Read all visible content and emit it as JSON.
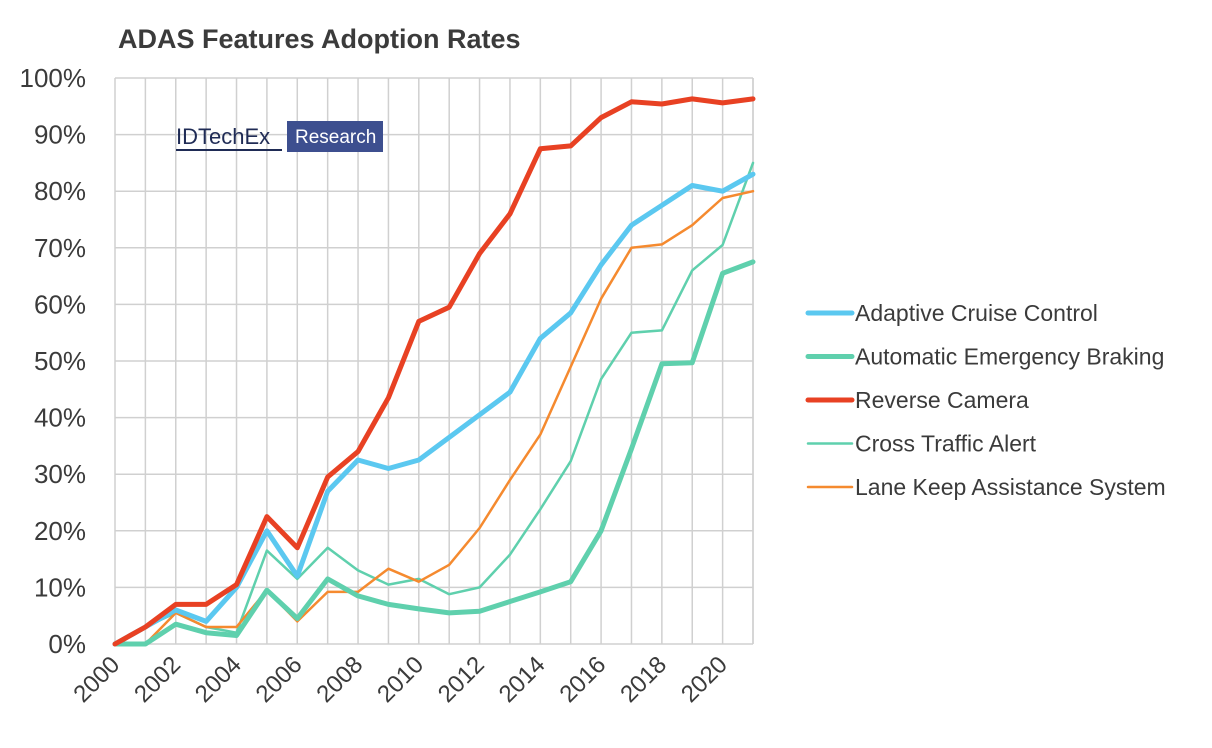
{
  "logo": {
    "left": "IDTechEx",
    "right": "Research"
  },
  "colors": {
    "grid": "#d0d0d0",
    "logo_box": "#3d4f8f",
    "logo_text": "#1f2b55"
  },
  "chart_data": {
    "type": "line",
    "title": "ADAS Features Adoption Rates",
    "xlabel": "",
    "ylabel": "",
    "x": [
      2000,
      2001,
      2002,
      2003,
      2004,
      2005,
      2006,
      2007,
      2008,
      2009,
      2010,
      2011,
      2012,
      2013,
      2014,
      2015,
      2016,
      2017,
      2018,
      2019,
      2020,
      2021
    ],
    "x_tick_labels": [
      "2000",
      "2002",
      "2004",
      "2006",
      "2008",
      "2010",
      "2012",
      "2014",
      "2016",
      "2018",
      "2020"
    ],
    "y_tick_labels": [
      "0%",
      "10%",
      "20%",
      "30%",
      "40%",
      "50%",
      "60%",
      "70%",
      "80%",
      "90%",
      "100%"
    ],
    "ylim": [
      0,
      100
    ],
    "xlim": [
      2000,
      2021
    ],
    "grid": true,
    "legend_position": "right",
    "series": [
      {
        "name": "Adaptive Cruise Control",
        "color": "#5bc8f0",
        "width": 5,
        "values": [
          0,
          3,
          6,
          4,
          10,
          20,
          12,
          27,
          32.5,
          31,
          32.5,
          36.5,
          40.5,
          44.5,
          54,
          58.5,
          67,
          74,
          77.5,
          81,
          80,
          83
        ]
      },
      {
        "name": "Automatic Emergency Braking",
        "color": "#5fd0ad",
        "width": 5,
        "values": [
          0,
          0,
          3.5,
          2,
          1.5,
          9.5,
          4.5,
          11.5,
          8.5,
          7,
          6.2,
          5.5,
          5.8,
          7.5,
          9.2,
          11,
          20,
          34.5,
          49.5,
          49.7,
          65.5,
          67.5
        ]
      },
      {
        "name": "Reverse Camera",
        "color": "#e84123",
        "width": 5,
        "values": [
          0,
          3,
          7,
          7,
          10.5,
          22.5,
          17,
          29.5,
          34,
          43.5,
          57,
          59.5,
          69,
          76,
          87.5,
          88,
          93,
          95.8,
          95.4,
          96.3,
          95.6,
          96.3
        ]
      },
      {
        "name": "Cross Traffic Alert",
        "color": "#5fd0ad",
        "width": 2.5,
        "values": [
          0,
          3,
          5.5,
          3,
          2,
          16.5,
          11.5,
          17,
          13,
          10.5,
          11.5,
          8.8,
          10,
          15.8,
          23.8,
          32.3,
          46.8,
          55,
          55.4,
          66,
          70.5,
          85
        ]
      },
      {
        "name": "Lane Keep Assistance System",
        "color": "#f58a2f",
        "width": 2.5,
        "values": [
          0,
          0,
          5.5,
          3,
          3,
          9.5,
          4,
          9.2,
          9.2,
          13.3,
          11,
          14,
          20.5,
          29,
          37,
          49,
          61,
          70,
          70.6,
          74,
          78.8,
          80
        ]
      }
    ]
  }
}
